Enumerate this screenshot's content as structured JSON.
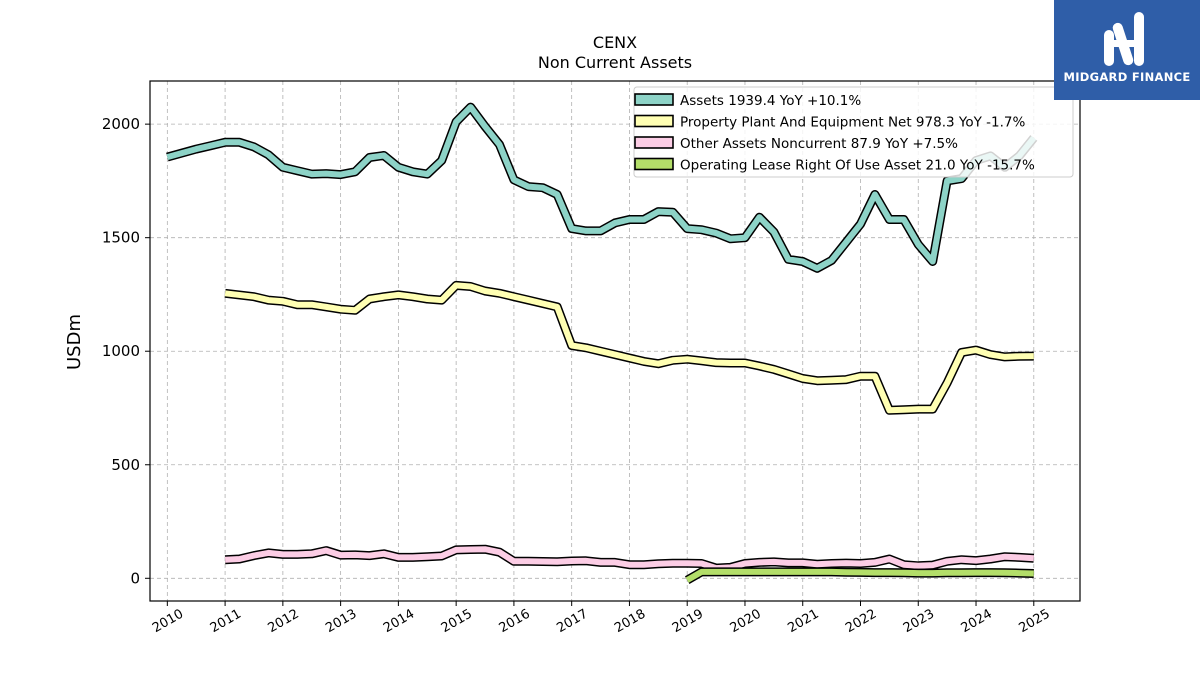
{
  "logo": {
    "text": "MIDGARD FINANCE"
  },
  "chart_data": {
    "type": "line",
    "title": "CENX",
    "subtitle": "Non Current  Assets",
    "ylabel": "USDm",
    "xlim": [
      2009.7,
      2025.8
    ],
    "ylim": [
      -100,
      2190
    ],
    "yticks": [
      0,
      500,
      1000,
      1500,
      2000
    ],
    "xticks": [
      2010,
      2011,
      2012,
      2013,
      2014,
      2015,
      2016,
      2017,
      2018,
      2019,
      2020,
      2021,
      2022,
      2023,
      2024,
      2025
    ],
    "grid": true,
    "legend_position": "top-right",
    "series": [
      {
        "name": "Assets",
        "legend": "Assets  1939.4 YoY +10.1%",
        "color": "#8dd3c7",
        "x": [
          2010.0,
          2010.5,
          2010.75,
          2011.0,
          2011.25,
          2011.5,
          2011.75,
          2012.0,
          2012.25,
          2012.5,
          2012.75,
          2013.0,
          2013.25,
          2013.5,
          2013.75,
          2014.0,
          2014.25,
          2014.5,
          2014.75,
          2015.0,
          2015.25,
          2015.5,
          2015.75,
          2016.0,
          2016.25,
          2016.5,
          2016.75,
          2017.0,
          2017.25,
          2017.5,
          2017.75,
          2018.0,
          2018.25,
          2018.5,
          2018.75,
          2019.0,
          2019.25,
          2019.5,
          2019.75,
          2020.0,
          2020.25,
          2020.5,
          2020.75,
          2021.0,
          2021.25,
          2021.5,
          2021.75,
          2022.0,
          2022.25,
          2022.5,
          2022.75,
          2023.0,
          2023.25,
          2023.5,
          2023.75,
          2024.0,
          2024.25,
          2024.5,
          2024.75,
          2025.0
        ],
        "y": [
          1855,
          1890,
          1905,
          1920,
          1920,
          1900,
          1865,
          1810,
          1795,
          1780,
          1782,
          1778,
          1790,
          1853,
          1862,
          1810,
          1790,
          1780,
          1840,
          2010,
          2075,
          1990,
          1910,
          1755,
          1725,
          1720,
          1690,
          1540,
          1530,
          1530,
          1565,
          1580,
          1580,
          1615,
          1612,
          1540,
          1535,
          1520,
          1495,
          1500,
          1590,
          1525,
          1405,
          1395,
          1365,
          1400,
          1480,
          1560,
          1690,
          1580,
          1580,
          1470,
          1395,
          1750,
          1760,
          1840,
          1860,
          1810,
          1860,
          1939.4
        ]
      },
      {
        "name": "Property Plant And Equipment Net",
        "legend": "Property Plant And Equipment Net  978.3 YoY -1.7%",
        "color": "#ffffb3",
        "x": [
          2011.0,
          2011.5,
          2011.75,
          2012.0,
          2012.25,
          2012.5,
          2012.75,
          2013.0,
          2013.25,
          2013.5,
          2013.75,
          2014.0,
          2014.25,
          2014.5,
          2014.75,
          2015.0,
          2015.25,
          2015.5,
          2015.75,
          2016.0,
          2016.25,
          2016.5,
          2016.75,
          2017.0,
          2017.25,
          2017.5,
          2017.75,
          2018.0,
          2018.25,
          2018.5,
          2018.75,
          2019.0,
          2019.25,
          2019.5,
          2019.75,
          2020.0,
          2020.25,
          2020.5,
          2020.75,
          2021.0,
          2021.25,
          2021.5,
          2021.75,
          2022.0,
          2022.25,
          2022.5,
          2022.75,
          2023.0,
          2023.25,
          2023.5,
          2023.75,
          2024.0,
          2024.25,
          2024.5,
          2024.75,
          2025.0
        ],
        "y": [
          1255,
          1240,
          1225,
          1220,
          1205,
          1205,
          1195,
          1185,
          1180,
          1230,
          1240,
          1248,
          1240,
          1230,
          1225,
          1290,
          1285,
          1265,
          1255,
          1240,
          1225,
          1210,
          1195,
          1025,
          1015,
          1000,
          985,
          970,
          955,
          945,
          960,
          965,
          958,
          950,
          948,
          948,
          935,
          920,
          900,
          880,
          870,
          872,
          875,
          890,
          890,
          740,
          742,
          745,
          745,
          860,
          995,
          1005,
          985,
          975,
          978,
          978.3
        ]
      },
      {
        "name": "Other Assets Noncurrent",
        "legend": "Other Assets Noncurrent  87.9 YoY +7.5%",
        "color": "#fccde5",
        "x": [
          2011.0,
          2011.25,
          2011.5,
          2011.75,
          2012.0,
          2012.25,
          2012.5,
          2012.75,
          2013.0,
          2013.25,
          2013.5,
          2013.75,
          2014.0,
          2014.25,
          2014.5,
          2014.75,
          2015.0,
          2015.25,
          2015.5,
          2015.75,
          2016.0,
          2016.25,
          2016.5,
          2016.75,
          2017.0,
          2017.25,
          2017.5,
          2017.75,
          2018.0,
          2018.25,
          2018.5,
          2018.75,
          2019.0,
          2019.25,
          2019.5,
          2019.75,
          2020.0,
          2020.25,
          2020.5,
          2020.75,
          2021.0,
          2021.25,
          2021.5,
          2021.75,
          2022.0,
          2022.25,
          2022.5,
          2022.75,
          2023.0,
          2023.25,
          2023.5,
          2023.75,
          2024.0,
          2024.25,
          2024.5,
          2024.75,
          2025.0
        ],
        "y": [
          82,
          85,
          100,
          112,
          105,
          105,
          108,
          122,
          102,
          103,
          100,
          108,
          92,
          92,
          95,
          98,
          125,
          127,
          128,
          115,
          75,
          75,
          74,
          73,
          76,
          77,
          70,
          70,
          60,
          60,
          64,
          66,
          66,
          65,
          45,
          48,
          65,
          70,
          72,
          68,
          68,
          62,
          65,
          67,
          65,
          70,
          85,
          60,
          55,
          58,
          75,
          82,
          78,
          85,
          95,
          92,
          87.9
        ]
      },
      {
        "name": "Operating Lease Right Of Use Asset",
        "legend": "Operating Lease Right Of Use Asset  21.0 YoY -15.7%",
        "color": "#b3de69",
        "x": [
          2019.0,
          2019.25,
          2019.5,
          2019.75,
          2020.0,
          2020.25,
          2020.5,
          2020.75,
          2021.0,
          2021.25,
          2021.5,
          2021.75,
          2022.0,
          2022.25,
          2022.5,
          2022.75,
          2023.0,
          2023.25,
          2023.5,
          2023.75,
          2024.0,
          2024.25,
          2024.5,
          2024.75,
          2025.0
        ],
        "y": [
          -8,
          28,
          28,
          28,
          28,
          28,
          28,
          28,
          28,
          28,
          28,
          27,
          26,
          25,
          25,
          24,
          23,
          23,
          24,
          24,
          25,
          25,
          24,
          23,
          21.0
        ]
      }
    ]
  }
}
